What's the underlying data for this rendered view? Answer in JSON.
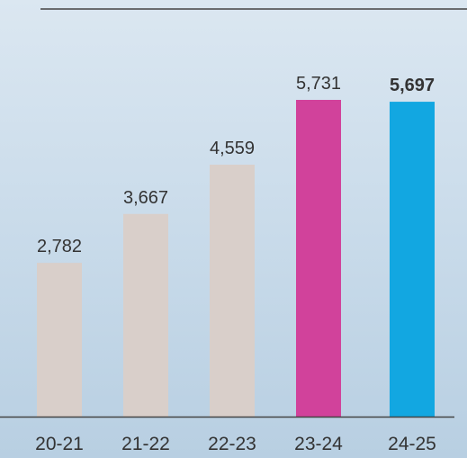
{
  "chart_data": {
    "type": "bar",
    "categories": [
      "20-21",
      "21-22",
      "22-23",
      "23-24",
      "24-25"
    ],
    "values": [
      2782,
      3667,
      4559,
      5731,
      5697
    ],
    "value_labels": [
      "2,782",
      "3,667",
      "4,559",
      "5,731",
      "5,697"
    ],
    "colors": [
      "#d9cfca",
      "#d9cfca",
      "#d9cfca",
      "#d1429b",
      "#12a7e1"
    ]
  }
}
